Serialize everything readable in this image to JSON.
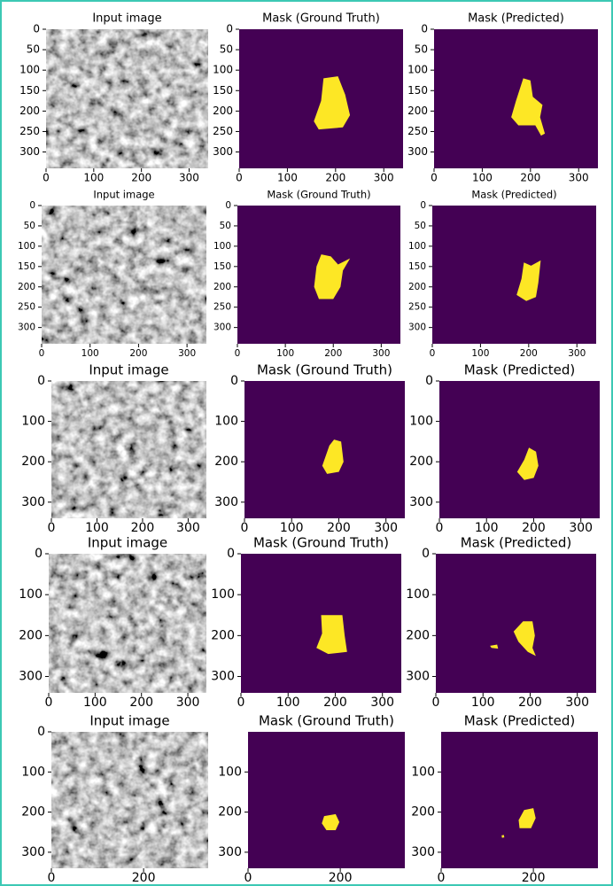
{
  "chart_data": [
    {
      "type": "image",
      "cmap": "gray",
      "title": "Input image",
      "xlim": [
        0,
        340
      ],
      "ylim": [
        340,
        0
      ],
      "xticks": [
        0,
        100,
        200,
        300
      ],
      "yticks": [
        0,
        50,
        100,
        150,
        200,
        250,
        300
      ]
    },
    {
      "type": "mask",
      "background_color": "#440154",
      "mask_color": "#fde725",
      "title": "Mask (Ground Truth)",
      "xlim": [
        0,
        340
      ],
      "ylim": [
        340,
        0
      ],
      "xticks": [
        0,
        100,
        200,
        300
      ],
      "yticks": [
        0,
        50,
        100,
        150,
        200,
        250,
        300
      ]
    },
    {
      "type": "mask",
      "background_color": "#440154",
      "mask_color": "#fde725",
      "title": "Mask (Predicted)",
      "xlim": [
        0,
        340
      ],
      "ylim": [
        340,
        0
      ],
      "xticks": [
        0,
        100,
        200,
        300
      ],
      "yticks": [
        0,
        50,
        100,
        150,
        200,
        250,
        300
      ]
    },
    {
      "type": "image",
      "cmap": "gray",
      "title": "Input image",
      "xlim": [
        0,
        340
      ],
      "ylim": [
        340,
        0
      ],
      "xticks": [
        0,
        100,
        200,
        300
      ],
      "yticks": [
        0,
        50,
        100,
        150,
        200,
        250,
        300
      ]
    },
    {
      "type": "mask",
      "background_color": "#440154",
      "mask_color": "#fde725",
      "title": "Mask (Ground Truth)",
      "xlim": [
        0,
        340
      ],
      "ylim": [
        340,
        0
      ],
      "xticks": [
        0,
        100,
        200,
        300
      ],
      "yticks": [
        0,
        50,
        100,
        150,
        200,
        250,
        300
      ]
    },
    {
      "type": "mask",
      "background_color": "#440154",
      "mask_color": "#fde725",
      "title": "Mask (Predicted)",
      "xlim": [
        0,
        340
      ],
      "ylim": [
        340,
        0
      ],
      "xticks": [
        0,
        100,
        200,
        300
      ],
      "yticks": [
        0,
        50,
        100,
        150,
        200,
        250,
        300
      ]
    },
    {
      "type": "image",
      "cmap": "gray",
      "title": "Input image",
      "xlim": [
        0,
        340
      ],
      "ylim": [
        340,
        0
      ],
      "xticks": [
        0,
        100,
        200,
        300
      ],
      "yticks": [
        0,
        100,
        200,
        300
      ]
    },
    {
      "type": "mask",
      "background_color": "#440154",
      "mask_color": "#fde725",
      "title": "Mask (Ground Truth)",
      "xlim": [
        0,
        340
      ],
      "ylim": [
        340,
        0
      ],
      "xticks": [
        0,
        100,
        200,
        300
      ],
      "yticks": [
        0,
        100,
        200,
        300
      ]
    },
    {
      "type": "mask",
      "background_color": "#440154",
      "mask_color": "#fde725",
      "title": "Mask (Predicted)",
      "xlim": [
        0,
        340
      ],
      "ylim": [
        340,
        0
      ],
      "xticks": [
        0,
        100,
        200,
        300
      ],
      "yticks": [
        0,
        100,
        200,
        300
      ]
    },
    {
      "type": "image",
      "cmap": "gray",
      "title": "Input image",
      "xlim": [
        0,
        340
      ],
      "ylim": [
        340,
        0
      ],
      "xticks": [
        0,
        100,
        200,
        300
      ],
      "yticks": [
        0,
        100,
        200,
        300
      ]
    },
    {
      "type": "mask",
      "background_color": "#440154",
      "mask_color": "#fde725",
      "title": "Mask (Ground Truth)",
      "xlim": [
        0,
        340
      ],
      "ylim": [
        340,
        0
      ],
      "xticks": [
        0,
        100,
        200,
        300
      ],
      "yticks": [
        0,
        100,
        200,
        300
      ]
    },
    {
      "type": "mask",
      "background_color": "#440154",
      "mask_color": "#fde725",
      "title": "Mask (Predicted)",
      "xlim": [
        0,
        340
      ],
      "ylim": [
        340,
        0
      ],
      "xticks": [
        0,
        100,
        200,
        300
      ],
      "yticks": [
        0,
        100,
        200,
        300
      ]
    },
    {
      "type": "image",
      "cmap": "gray",
      "title": "Input image",
      "xlim": [
        0,
        340
      ],
      "ylim": [
        340,
        0
      ],
      "xticks": [
        0,
        200
      ],
      "yticks": [
        0,
        100,
        200,
        300
      ]
    },
    {
      "type": "mask",
      "background_color": "#440154",
      "mask_color": "#fde725",
      "title": "Mask (Ground Truth)",
      "xlim": [
        0,
        340
      ],
      "ylim": [
        340,
        0
      ],
      "xticks": [
        0,
        200
      ],
      "yticks": [
        100,
        200,
        300
      ]
    },
    {
      "type": "mask",
      "background_color": "#440154",
      "mask_color": "#fde725",
      "title": "Mask (Predicted)",
      "xlim": [
        0,
        340
      ],
      "ylim": [
        340,
        0
      ],
      "xticks": [
        0,
        200
      ],
      "yticks": [
        100,
        200,
        300
      ]
    }
  ]
}
